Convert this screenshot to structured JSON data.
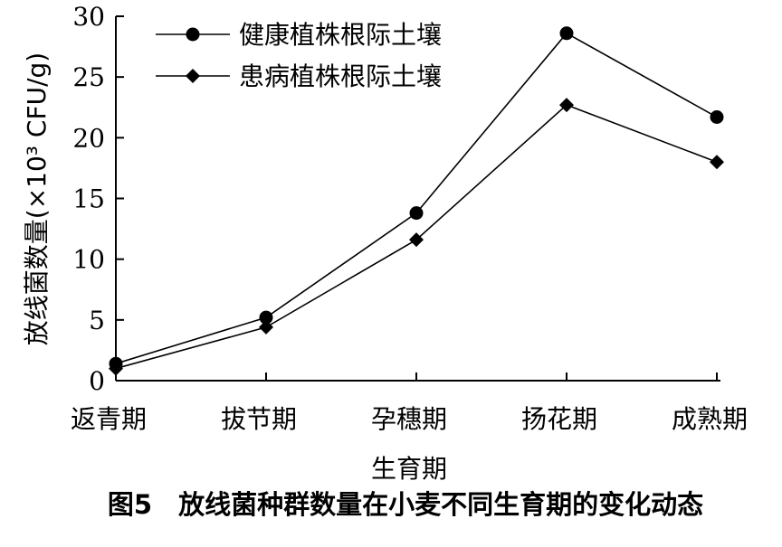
{
  "chart_data": {
    "type": "line",
    "categories": [
      "返青期",
      "拔节期",
      "孕穗期",
      "扬花期",
      "成熟期"
    ],
    "series": [
      {
        "name": "健康植株根际土壤",
        "marker": "circle",
        "values": [
          1.4,
          5.2,
          13.8,
          28.6,
          21.7
        ]
      },
      {
        "name": "患病植株根际土壤",
        "marker": "diamond",
        "values": [
          1.0,
          4.4,
          11.6,
          22.7,
          18.0
        ]
      }
    ],
    "xlabel": "生育期",
    "ylabel": "放线菌数量(×10³ CFU/g)",
    "ylim": [
      0,
      30
    ],
    "yticks": [
      0,
      5,
      10,
      15,
      20,
      25,
      30
    ],
    "grid": false,
    "legend_position": "top-left",
    "line_color": "#000000"
  },
  "caption": "图5　放线菌种群数量在小麦不同生育期的变化动态"
}
